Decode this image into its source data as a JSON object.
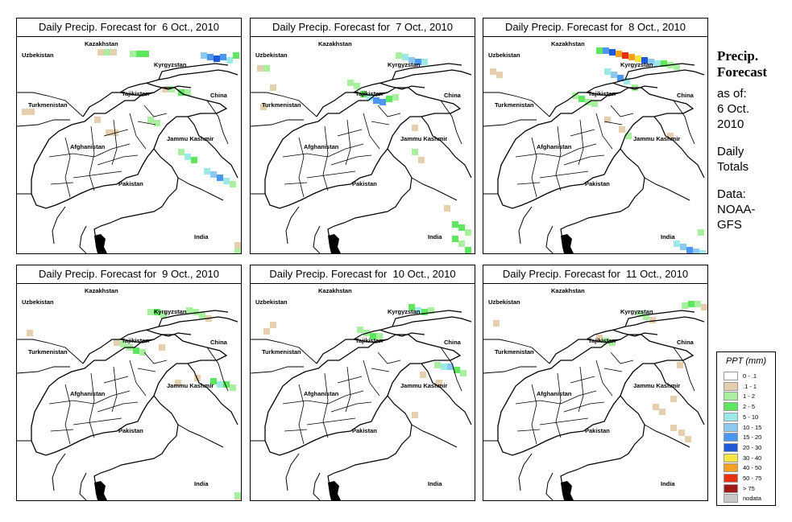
{
  "panels": [
    {
      "title": "Daily Precip. Forecast for  6 Oct., 2010"
    },
    {
      "title": "Daily Precip. Forecast for  7 Oct., 2010"
    },
    {
      "title": "Daily Precip. Forecast for  8 Oct., 2010"
    },
    {
      "title": "Daily Precip. Forecast for  9 Oct., 2010"
    },
    {
      "title": "Daily Precip. Forecast for  10 Oct., 2010"
    },
    {
      "title": "Daily Precip. Forecast for  11 Oct., 2010"
    }
  ],
  "map_labels": {
    "kazakhstan": "Kazakhstan",
    "uzbekistan": "Uzbekistan",
    "kyrgyzstan": "Kyrgyzstan",
    "tajikistan": "Tajikistan",
    "china": "China",
    "turkmenistan": "Turkmenistan",
    "jammu_kashmir": "Jammu Kashmir",
    "afghanistan": "Afghanistan",
    "pakistan": "Pakistan",
    "india": "India"
  },
  "side": {
    "title_line1": "Precip.",
    "title_line2": "Forecast",
    "asof_line1": "as of:",
    "asof_line2": "6 Oct.",
    "asof_line3": "2010",
    "daily_line1": "Daily",
    "daily_line2": "Totals",
    "data_line1": "Data:",
    "data_line2": "NOAA-",
    "data_line3": "GFS"
  },
  "legend": {
    "title": "PPT (mm)",
    "items": [
      {
        "label": "0 - .1",
        "color": "#ffffff"
      },
      {
        "label": ".1 - 1",
        "color": "#e6cfae"
      },
      {
        "label": "1 - 2",
        "color": "#a8f0a0"
      },
      {
        "label": "2 - 5",
        "color": "#5ee65e"
      },
      {
        "label": "5 - 10",
        "color": "#9ee8e8"
      },
      {
        "label": "10 - 15",
        "color": "#8cc8f0"
      },
      {
        "label": "15 - 20",
        "color": "#4a96f0"
      },
      {
        "label": "20 - 30",
        "color": "#1f5ad8"
      },
      {
        "label": "30 - 40",
        "color": "#f5e640"
      },
      {
        "label": "40 - 50",
        "color": "#f5a020"
      },
      {
        "label": "50 - 75",
        "color": "#e83010"
      },
      {
        "label": "> 75",
        "color": "#a01818"
      },
      {
        "label": "nodata",
        "color": "#c8c8c8"
      }
    ]
  }
}
